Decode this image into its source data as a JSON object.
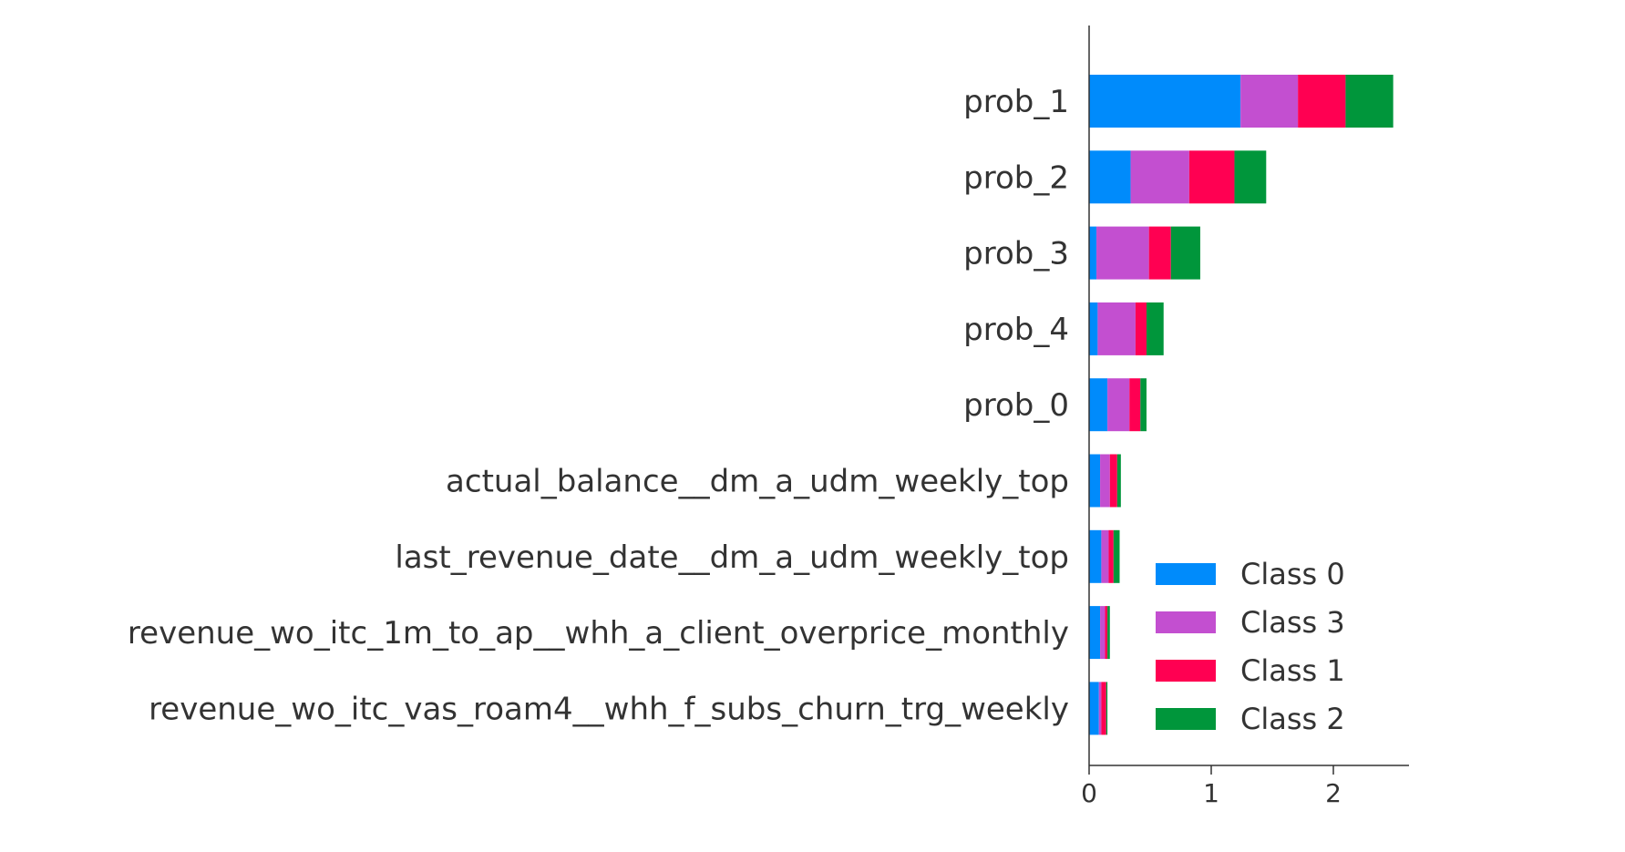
{
  "chart_data": {
    "type": "bar",
    "orientation": "horizontal",
    "stacked": true,
    "title": "",
    "xlabel": "",
    "ylabel": "",
    "xlim": [
      0,
      2.6
    ],
    "xticks": [
      "0",
      "1",
      "2"
    ],
    "xtick_values": [
      0,
      1,
      2
    ],
    "legend_position": "lower-right",
    "categories": [
      "prob_1",
      "prob_2",
      "prob_3",
      "prob_4",
      "prob_0",
      "actual_balance__dm_a_udm_weekly_top",
      "last_revenue_date__dm_a_udm_weekly_top",
      "revenue_wo_itc_1m_to_ap__whh_a_client_overprice_monthly",
      "revenue_wo_itc_vas_roam4__whh_f_subs_churn_trg_weekly"
    ],
    "series": [
      {
        "name": "Class 0",
        "color": "#008bfb",
        "values": [
          1.24,
          0.34,
          0.06,
          0.07,
          0.15,
          0.09,
          0.1,
          0.09,
          0.08
        ]
      },
      {
        "name": "Class 3",
        "color": "#c34fd0",
        "values": [
          0.47,
          0.48,
          0.43,
          0.31,
          0.18,
          0.08,
          0.06,
          0.04,
          0.02
        ]
      },
      {
        "name": "Class 1",
        "color": "#ff0052",
        "values": [
          0.39,
          0.37,
          0.18,
          0.09,
          0.09,
          0.06,
          0.04,
          0.02,
          0.04
        ]
      },
      {
        "name": "Class 2",
        "color": "#00963b",
        "values": [
          0.39,
          0.26,
          0.24,
          0.14,
          0.05,
          0.03,
          0.05,
          0.02,
          0.01
        ]
      }
    ]
  }
}
